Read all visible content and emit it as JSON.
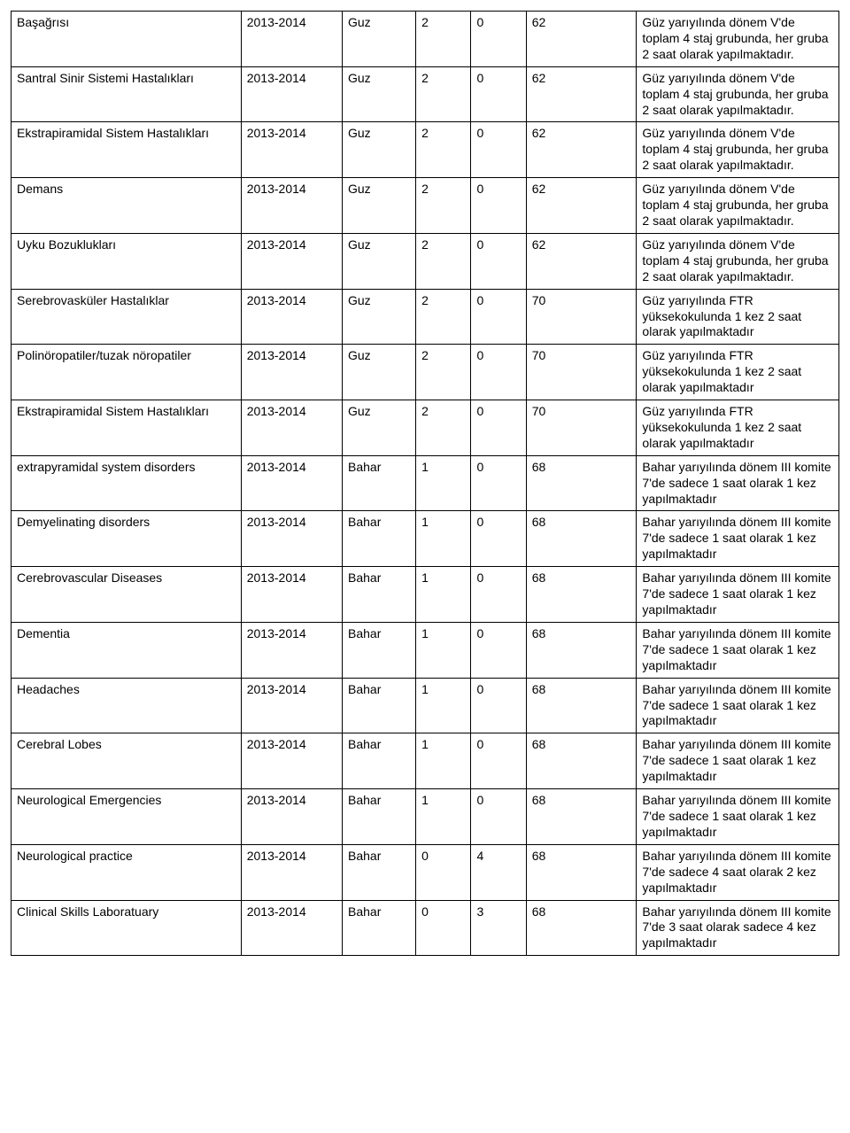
{
  "table": {
    "column_widths_pct": [
      25,
      11,
      8,
      6,
      6,
      12,
      22
    ],
    "font_size_pt": 11,
    "border_color": "#000000",
    "background_color": "#ffffff",
    "text_color": "#000000",
    "rows": [
      [
        "Başağrısı",
        "2013-2014",
        "Guz",
        "2",
        "0",
        "62",
        "Güz yarıyılında dönem V'de toplam 4 staj grubunda, her gruba 2 saat olarak yapılmaktadır."
      ],
      [
        "Santral Sinir Sistemi Hastalıkları",
        "2013-2014",
        "Guz",
        "2",
        "0",
        "62",
        "Güz yarıyılında dönem V'de toplam 4 staj grubunda, her gruba 2 saat olarak yapılmaktadır."
      ],
      [
        "Ekstrapiramidal Sistem Hastalıkları",
        "2013-2014",
        "Guz",
        "2",
        "0",
        "62",
        "Güz yarıyılında dönem V'de toplam 4 staj grubunda, her gruba 2 saat olarak yapılmaktadır."
      ],
      [
        "Demans",
        "2013-2014",
        "Guz",
        "2",
        "0",
        "62",
        "Güz yarıyılında dönem V'de toplam 4 staj grubunda, her gruba 2 saat olarak yapılmaktadır."
      ],
      [
        "Uyku Bozuklukları",
        "2013-2014",
        "Guz",
        "2",
        "0",
        "62",
        "Güz yarıyılında dönem V'de toplam 4 staj grubunda, her gruba 2 saat olarak yapılmaktadır."
      ],
      [
        "Serebrovasküler Hastalıklar",
        "2013-2014",
        "Guz",
        "2",
        "0",
        "70",
        "Güz yarıyılında FTR yüksekokulunda 1 kez 2 saat olarak yapılmaktadır"
      ],
      [
        "Polinöropatiler/tuzak nöropatiler",
        "2013-2014",
        "Guz",
        "2",
        "0",
        "70",
        "Güz yarıyılında FTR yüksekokulunda 1 kez 2 saat olarak yapılmaktadır"
      ],
      [
        "Ekstrapiramidal Sistem Hastalıkları",
        "2013-2014",
        "Guz",
        "2",
        "0",
        "70",
        "Güz yarıyılında FTR yüksekokulunda 1 kez 2 saat olarak yapılmaktadır"
      ],
      [
        "extrapyramidal system disorders",
        "2013-2014",
        "Bahar",
        "1",
        "0",
        "68",
        "Bahar yarıyılında dönem III komite 7'de sadece 1 saat olarak 1 kez yapılmaktadır"
      ],
      [
        "Demyelinating disorders",
        "2013-2014",
        "Bahar",
        "1",
        "0",
        "68",
        "Bahar yarıyılında dönem III komite 7'de sadece 1 saat olarak 1 kez yapılmaktadır"
      ],
      [
        "Cerebrovascular Diseases",
        "2013-2014",
        "Bahar",
        "1",
        "0",
        "68",
        "Bahar yarıyılında dönem III komite 7'de sadece 1 saat olarak 1 kez yapılmaktadır"
      ],
      [
        "Dementia",
        "2013-2014",
        "Bahar",
        "1",
        "0",
        "68",
        "Bahar yarıyılında dönem III komite 7'de sadece 1 saat olarak 1 kez yapılmaktadır"
      ],
      [
        "Headaches",
        "2013-2014",
        "Bahar",
        "1",
        "0",
        "68",
        "Bahar yarıyılında dönem III komite 7'de sadece 1 saat olarak 1 kez yapılmaktadır"
      ],
      [
        "Cerebral Lobes",
        "2013-2014",
        "Bahar",
        "1",
        "0",
        "68",
        "Bahar yarıyılında dönem III komite 7'de sadece 1 saat olarak 1 kez yapılmaktadır"
      ],
      [
        "Neurological Emergencies",
        "2013-2014",
        "Bahar",
        "1",
        "0",
        "68",
        "Bahar yarıyılında dönem III komite 7'de sadece 1 saat olarak 1 kez yapılmaktadır"
      ],
      [
        "Neurological practice",
        "2013-2014",
        "Bahar",
        "0",
        "4",
        "68",
        "Bahar yarıyılında dönem III komite 7'de sadece 4 saat olarak 2 kez yapılmaktadır"
      ],
      [
        "Clinical Skills Laboratuary",
        "2013-2014",
        "Bahar",
        "0",
        "3",
        "68",
        "Bahar yarıyılında dönem III komite 7'de 3 saat olarak sadece 4 kez yapılmaktadır"
      ]
    ]
  }
}
